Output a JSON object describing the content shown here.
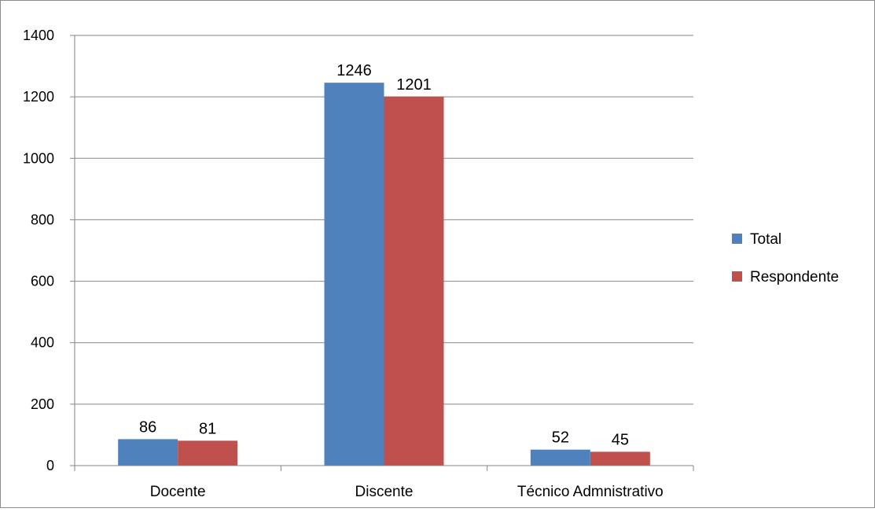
{
  "chart_data": {
    "type": "bar",
    "title": "",
    "xlabel": "",
    "ylabel": "",
    "categories": [
      "Docente",
      "Discente",
      "Técnico Admnistrativo"
    ],
    "series": [
      {
        "name": "Total",
        "values": [
          86,
          1246,
          52
        ],
        "color": "#4f81bd"
      },
      {
        "name": "Respondente",
        "values": [
          81,
          1201,
          45
        ],
        "color": "#c0504d"
      }
    ],
    "ylim": [
      0,
      1400
    ],
    "yticks": [
      0,
      200,
      400,
      600,
      800,
      1000,
      1200,
      1400
    ],
    "grid": true,
    "legend_position": "right",
    "data_labels": true
  }
}
